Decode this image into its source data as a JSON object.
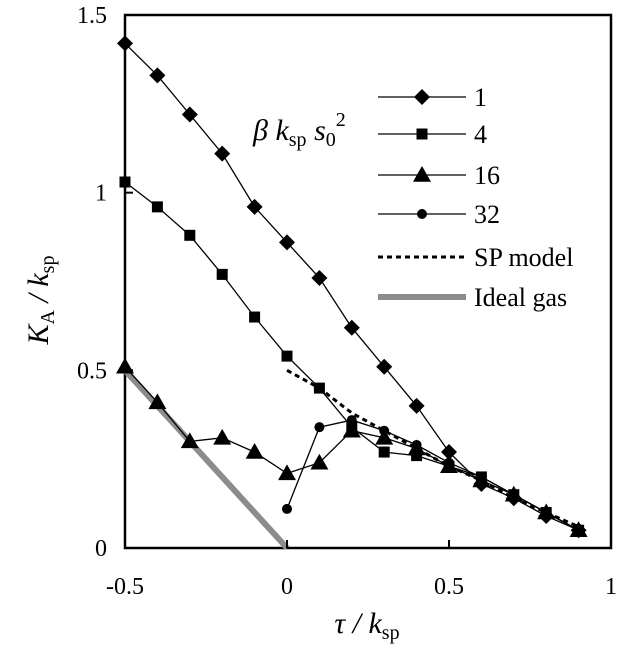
{
  "chart_data": {
    "type": "line",
    "xlabel": "τ / k_sp",
    "ylabel": "K_A / k_sp",
    "xlim": [
      -0.5,
      1.0
    ],
    "ylim": [
      0,
      1.5
    ],
    "xticks": [
      -0.5,
      0,
      0.5,
      1
    ],
    "xtick_labels": [
      "-0.5",
      "0",
      "0.5",
      "1"
    ],
    "yticks": [
      0,
      0.5,
      1,
      1.5
    ],
    "ytick_labels": [
      "0",
      "0.5",
      "1",
      "1.5"
    ],
    "grid": false,
    "legend_title": "β k_sp s_0²",
    "legend_position": "top-right inside",
    "series": [
      {
        "name": "1",
        "marker": "diamond",
        "color": "#000000",
        "x": [
          -0.5,
          -0.4,
          -0.3,
          -0.2,
          -0.1,
          0.0,
          0.1,
          0.2,
          0.3,
          0.4,
          0.5,
          0.6,
          0.7,
          0.8,
          0.9
        ],
        "y": [
          1.42,
          1.33,
          1.22,
          1.11,
          0.96,
          0.86,
          0.76,
          0.62,
          0.51,
          0.4,
          0.27,
          0.18,
          0.14,
          0.09,
          0.05
        ]
      },
      {
        "name": "4",
        "marker": "square",
        "color": "#000000",
        "x": [
          -0.5,
          -0.4,
          -0.3,
          -0.2,
          -0.1,
          0.0,
          0.1,
          0.2,
          0.3,
          0.4,
          0.5,
          0.6,
          0.7,
          0.8,
          0.9
        ],
        "y": [
          1.03,
          0.96,
          0.88,
          0.77,
          0.65,
          0.54,
          0.45,
          0.34,
          0.27,
          0.26,
          0.23,
          0.2,
          0.15,
          0.1,
          0.05
        ]
      },
      {
        "name": "16",
        "marker": "triangle",
        "color": "#000000",
        "x": [
          -0.5,
          -0.4,
          -0.3,
          -0.2,
          -0.1,
          0.0,
          0.1,
          0.2,
          0.3,
          0.4,
          0.5,
          0.6,
          0.7,
          0.8,
          0.9
        ],
        "y": [
          0.51,
          0.41,
          0.3,
          0.31,
          0.27,
          0.21,
          0.24,
          0.33,
          0.31,
          0.28,
          0.23,
          0.19,
          0.15,
          0.1,
          0.05
        ]
      },
      {
        "name": "32",
        "marker": "circle",
        "color": "#000000",
        "x": [
          0.0,
          0.1,
          0.2,
          0.3,
          0.4,
          0.5,
          0.6,
          0.7,
          0.8,
          0.9
        ],
        "y": [
          0.11,
          0.34,
          0.36,
          0.33,
          0.29,
          0.24,
          0.2,
          0.15,
          0.1,
          0.05
        ]
      },
      {
        "name": "SP model",
        "style": "dashed",
        "color": "#000000",
        "x": [
          0.0,
          0.1,
          0.2,
          0.3,
          0.4,
          0.5,
          0.6,
          0.7,
          0.8,
          0.9
        ],
        "y": [
          0.5,
          0.45,
          0.38,
          0.33,
          0.28,
          0.23,
          0.19,
          0.14,
          0.1,
          0.06
        ]
      },
      {
        "name": "Ideal gas",
        "style": "thick-gray",
        "color": "#8c8c8c",
        "x": [
          -0.5,
          0.0
        ],
        "y": [
          0.5,
          0.0
        ]
      }
    ]
  }
}
